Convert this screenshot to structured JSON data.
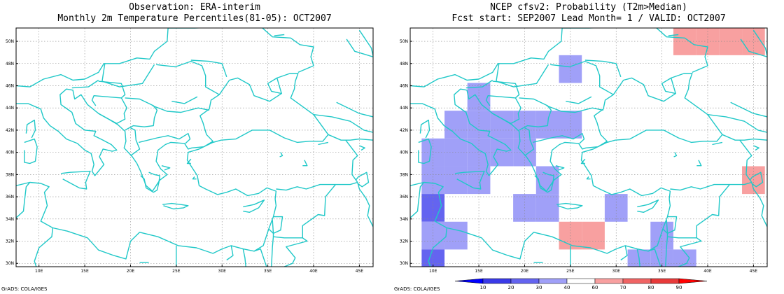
{
  "left_panel": {
    "title_line1": "Observation: ERA-interim",
    "title_line2": "Monthly 2m Temperature Percentiles(81-05): OCT2007",
    "credit": "GrADS: COLA/IGES"
  },
  "right_panel": {
    "title_line1": "NCEP cfsv2: Probability (T2m>Median)",
    "title_line2": "Fcst start: SEP2007  Lead Month= 1 / VALID: OCT2007",
    "credit": "GrADS: COLA/IGES"
  },
  "map": {
    "lon_range": [
      7.5,
      46.5
    ],
    "lat_range": [
      29.7,
      51.2
    ],
    "lon_ticks": [
      10,
      15,
      20,
      25,
      30,
      35,
      40,
      45
    ],
    "lon_tick_labels": [
      "10E",
      "15E",
      "20E",
      "25E",
      "30E",
      "35E",
      "40E",
      "45E"
    ],
    "lat_ticks": [
      30,
      32,
      34,
      36,
      38,
      40,
      42,
      44,
      46,
      48,
      50
    ],
    "lat_tick_labels": [
      "30N",
      "32N",
      "34N",
      "36N",
      "38N",
      "40N",
      "42N",
      "44N",
      "46N",
      "48N",
      "50N"
    ],
    "coast_color": "#20c8c8",
    "grid": true
  },
  "colorbar": {
    "levels": [
      10,
      20,
      30,
      40,
      60,
      70,
      80,
      90
    ],
    "labels": [
      "10",
      "20",
      "30",
      "40",
      "60",
      "70",
      "80",
      "90"
    ],
    "colors": [
      "#0000ff",
      "#3a3ae8",
      "#6464f0",
      "#a0a0f8",
      "#ffffff",
      "#f8a0a0",
      "#f06464",
      "#e83a3a",
      "#ff0000"
    ]
  },
  "chart_data": {
    "type": "heatmap",
    "cell_size_deg": 2.5,
    "cells": [
      {
        "lon": 25,
        "lat": 47.5,
        "level": 30
      },
      {
        "lon": 15,
        "lat": 45,
        "level": 30
      },
      {
        "lon": 12.5,
        "lat": 42.5,
        "level": 30
      },
      {
        "lon": 15,
        "lat": 42.5,
        "level": 30
      },
      {
        "lon": 17.5,
        "lat": 42.5,
        "level": 30
      },
      {
        "lon": 20,
        "lat": 42.5,
        "level": 30
      },
      {
        "lon": 22.5,
        "lat": 42.5,
        "level": 30
      },
      {
        "lon": 25,
        "lat": 42.5,
        "level": 30
      },
      {
        "lon": 10,
        "lat": 40,
        "level": 30
      },
      {
        "lon": 12.5,
        "lat": 40,
        "level": 30
      },
      {
        "lon": 15,
        "lat": 40,
        "level": 30
      },
      {
        "lon": 17.5,
        "lat": 40,
        "level": 30
      },
      {
        "lon": 20,
        "lat": 40,
        "level": 30
      },
      {
        "lon": 10,
        "lat": 37.5,
        "level": 30
      },
      {
        "lon": 12.5,
        "lat": 37.5,
        "level": 30
      },
      {
        "lon": 15,
        "lat": 37.5,
        "level": 30
      },
      {
        "lon": 22.5,
        "lat": 37.5,
        "level": 30
      },
      {
        "lon": 10,
        "lat": 35,
        "level": 20
      },
      {
        "lon": 20,
        "lat": 35,
        "level": 30
      },
      {
        "lon": 22.5,
        "lat": 35,
        "level": 30
      },
      {
        "lon": 30,
        "lat": 35,
        "level": 30
      },
      {
        "lon": 10,
        "lat": 32.5,
        "level": 30
      },
      {
        "lon": 12.5,
        "lat": 32.5,
        "level": 30
      },
      {
        "lon": 35,
        "lat": 32.5,
        "level": 30
      },
      {
        "lon": 10,
        "lat": 30,
        "level": 20
      },
      {
        "lon": 32.5,
        "lat": 30,
        "level": 30
      },
      {
        "lon": 35,
        "lat": 30,
        "level": 30
      },
      {
        "lon": 37.5,
        "lat": 30,
        "level": 30
      },
      {
        "lon": 37.5,
        "lat": 50,
        "level": 60
      },
      {
        "lon": 40,
        "lat": 50,
        "level": 60
      },
      {
        "lon": 42.5,
        "lat": 50,
        "level": 60
      },
      {
        "lon": 45,
        "lat": 50,
        "level": 60
      },
      {
        "lon": 45,
        "lat": 37.5,
        "level": 60
      },
      {
        "lon": 25,
        "lat": 32.5,
        "level": 60
      },
      {
        "lon": 27.5,
        "lat": 32.5,
        "level": 60
      }
    ]
  }
}
